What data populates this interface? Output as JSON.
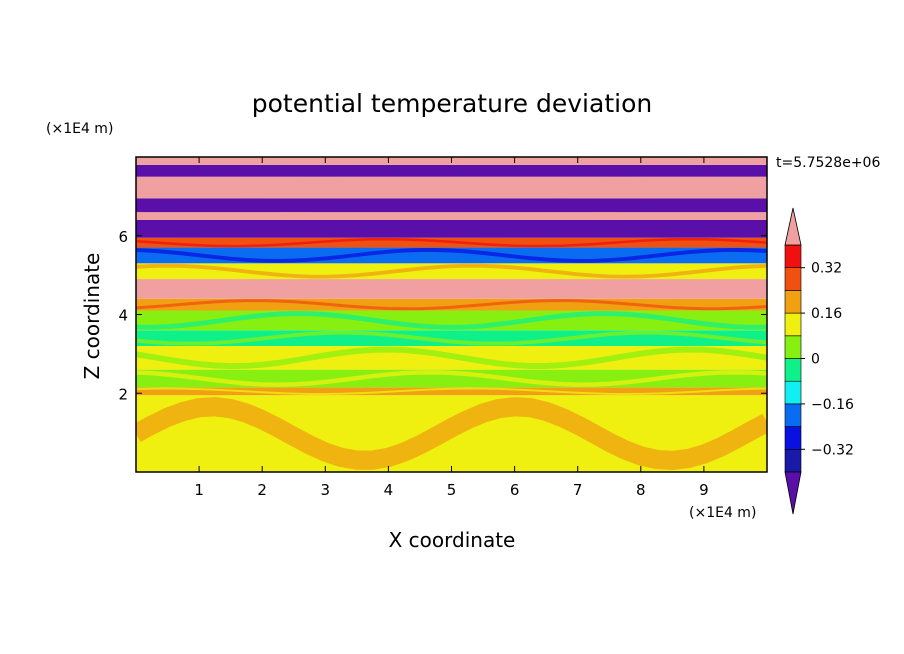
{
  "chart_data": {
    "type": "heatmap",
    "title": "potential temperature deviation",
    "xlabel": "X coordinate",
    "ylabel": "Z coordinate",
    "x_unit": "(×1E4 m)",
    "y_unit": "(×1E4 m)",
    "time_label": "t=5.7528e+06",
    "xlim": [
      0,
      10
    ],
    "ylim": [
      0,
      8
    ],
    "x_ticks": [
      1,
      2,
      3,
      4,
      5,
      6,
      7,
      8,
      9
    ],
    "x_tick_labels": [
      "1",
      "2",
      "3",
      "4",
      "5",
      "6",
      "7",
      "8",
      "9"
    ],
    "y_ticks": [
      2,
      4,
      6
    ],
    "y_tick_labels": [
      "2",
      "4",
      "6"
    ],
    "colorbar": {
      "levels": [
        -0.4,
        -0.32,
        -0.24,
        -0.16,
        -0.08,
        0,
        0.08,
        0.16,
        0.24,
        0.32,
        0.4
      ],
      "colors": [
        "#5a10a8",
        "#1a1aa8",
        "#0a10e0",
        "#0a6cf0",
        "#10f0f0",
        "#10f088",
        "#88f010",
        "#f0f010",
        "#f0a010",
        "#f05010",
        "#f01010",
        "#f0a0a0"
      ],
      "labels": [
        {
          "value": 0.32,
          "text": "0.32"
        },
        {
          "value": 0.16,
          "text": "0.16"
        },
        {
          "value": 0,
          "text": "0"
        },
        {
          "value": -0.16,
          "text": "−0.16"
        },
        {
          "value": -0.32,
          "text": "−0.32"
        }
      ]
    },
    "bands": [
      {
        "z_min": 0,
        "z_max": 1.95,
        "level": 1
      },
      {
        "z_min": 1.95,
        "z_max": 2.15,
        "level": 2
      },
      {
        "z_min": 2.15,
        "z_max": 2.6,
        "level": 0
      },
      {
        "z_min": 2.6,
        "z_max": 3.2,
        "level": 1
      },
      {
        "z_min": 3.2,
        "z_max": 3.6,
        "level": -1
      },
      {
        "z_min": 3.6,
        "z_max": 4.1,
        "level": 0
      },
      {
        "z_min": 4.1,
        "z_max": 4.4,
        "level": 2
      },
      {
        "z_min": 4.4,
        "z_max": 4.9,
        "level": 6
      },
      {
        "z_min": 4.9,
        "z_max": 5.3,
        "level": 1
      },
      {
        "z_min": 5.3,
        "z_max": 5.7,
        "level": -3
      },
      {
        "z_min": 5.7,
        "z_max": 5.95,
        "level": 3
      },
      {
        "z_min": 5.95,
        "z_max": 6.4,
        "level": -6
      },
      {
        "z_min": 6.4,
        "z_max": 6.6,
        "level": 6
      },
      {
        "z_min": 6.6,
        "z_max": 6.95,
        "level": -6
      },
      {
        "z_min": 6.95,
        "z_max": 7.5,
        "level": 6
      },
      {
        "z_min": 7.5,
        "z_max": 7.8,
        "level": -6
      },
      {
        "z_min": 7.8,
        "z_max": 8.0,
        "level": 6
      }
    ]
  }
}
